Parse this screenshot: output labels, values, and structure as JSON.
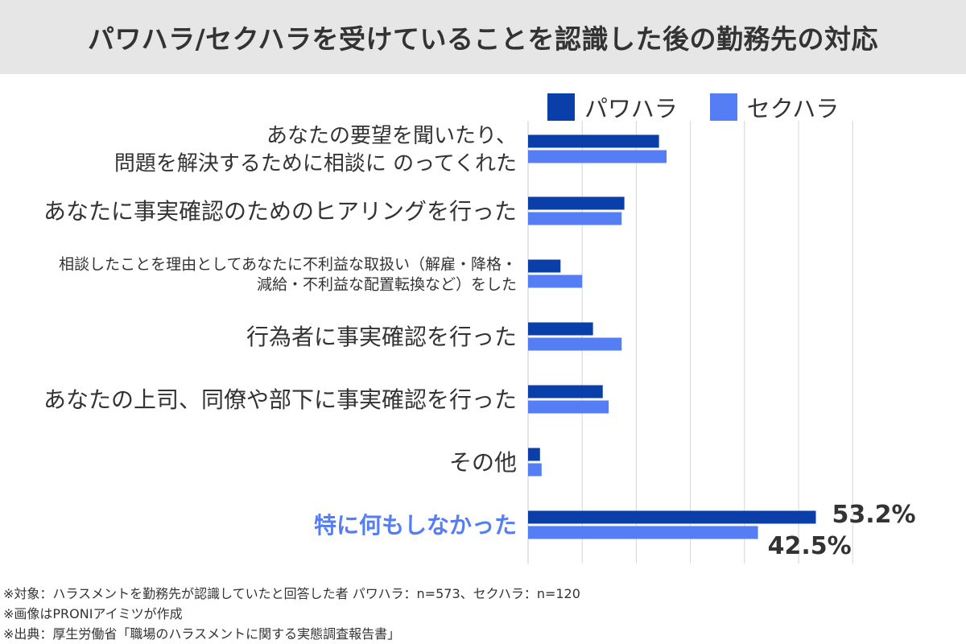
{
  "title": "パワハラ/セクハラを受けていることを認識した後の勤務先の対応",
  "colors": {
    "pawahara": "#0a3ea8",
    "sekuhara": "#557ef5",
    "highlight": "#557ef5",
    "grid": "#d6d6d6"
  },
  "chart_data": {
    "type": "bar",
    "orientation": "horizontal",
    "title": "パワハラ/セクハラを受けていることを認識した後の勤務先の対応",
    "legend": "top-right",
    "grid": true,
    "xlim": [
      0,
      60
    ],
    "categories": [
      {
        "lines": [
          "あなたの要望を聞いたり、",
          "問題を解決するために相談に のってくれた"
        ],
        "size": 26,
        "highlight": false
      },
      {
        "lines": [
          "あなたに事実確認のためのヒアリングを行った"
        ],
        "size": 28,
        "highlight": false
      },
      {
        "lines": [
          "相談したことを理由としてあなたに不利益な取扱い（解雇・降格・",
          "減給・不利益な配置転換など）をした"
        ],
        "size": 19,
        "highlight": false
      },
      {
        "lines": [
          "行為者に事実確認を行った"
        ],
        "size": 28,
        "highlight": false
      },
      {
        "lines": [
          "あなたの上司、同僚や部下に事実確認を行った"
        ],
        "size": 28,
        "highlight": false
      },
      {
        "lines": [
          "その他"
        ],
        "size": 28,
        "highlight": false
      },
      {
        "lines": [
          "特に何もしなかった"
        ],
        "size": 28,
        "highlight": true
      }
    ],
    "series": [
      {
        "name": "パワハラ",
        "values": [
          24.2,
          17.8,
          6.0,
          12.0,
          13.8,
          2.2,
          53.2
        ]
      },
      {
        "name": "セクハラ",
        "values": [
          25.6,
          17.3,
          10.0,
          17.3,
          14.9,
          2.5,
          42.5
        ]
      }
    ],
    "data_labels": [
      {
        "category_index": 6,
        "series_index": 0,
        "text": "53.2%"
      },
      {
        "category_index": 6,
        "series_index": 1,
        "text": "42.5%"
      }
    ]
  },
  "footnotes": [
    "※対象：ハラスメントを勤務先が認識していたと回答した者 パワハラ：n=573、セクハラ：n=120",
    "※画像はPRONIアイミツが作成",
    "※出典：厚生労働省「職場のハラスメントに関する実態調査報告書」"
  ]
}
